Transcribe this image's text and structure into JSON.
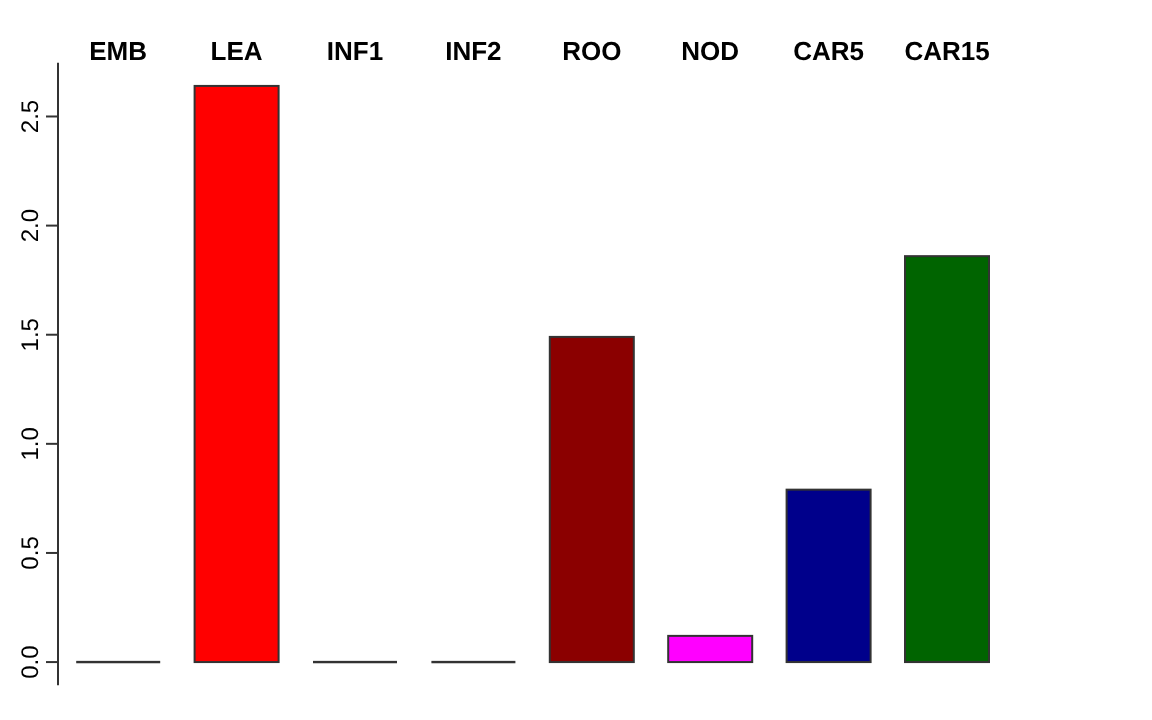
{
  "chart_data": {
    "type": "bar",
    "categories": [
      "EMB",
      "LEA",
      "INF1",
      "INF2",
      "ROO",
      "NOD",
      "CAR5",
      "CAR15"
    ],
    "values": [
      0,
      2.64,
      0,
      0,
      1.49,
      0.12,
      0.79,
      1.86
    ],
    "colors": [
      "#333333",
      "#ff0000",
      "#333333",
      "#333333",
      "#8b0000",
      "#ff00ff",
      "#00008b",
      "#006400"
    ],
    "ylim": [
      -0.106,
      2.746
    ],
    "yticks": [
      {
        "value": 0,
        "label": "0.0"
      },
      {
        "value": 0.5,
        "label": "0.5"
      },
      {
        "value": 1,
        "label": "1.0"
      },
      {
        "value": 1.5,
        "label": "1.5"
      },
      {
        "value": 2,
        "label": "2.0"
      },
      {
        "value": 2.5,
        "label": "2.5"
      }
    ],
    "grid": false
  }
}
